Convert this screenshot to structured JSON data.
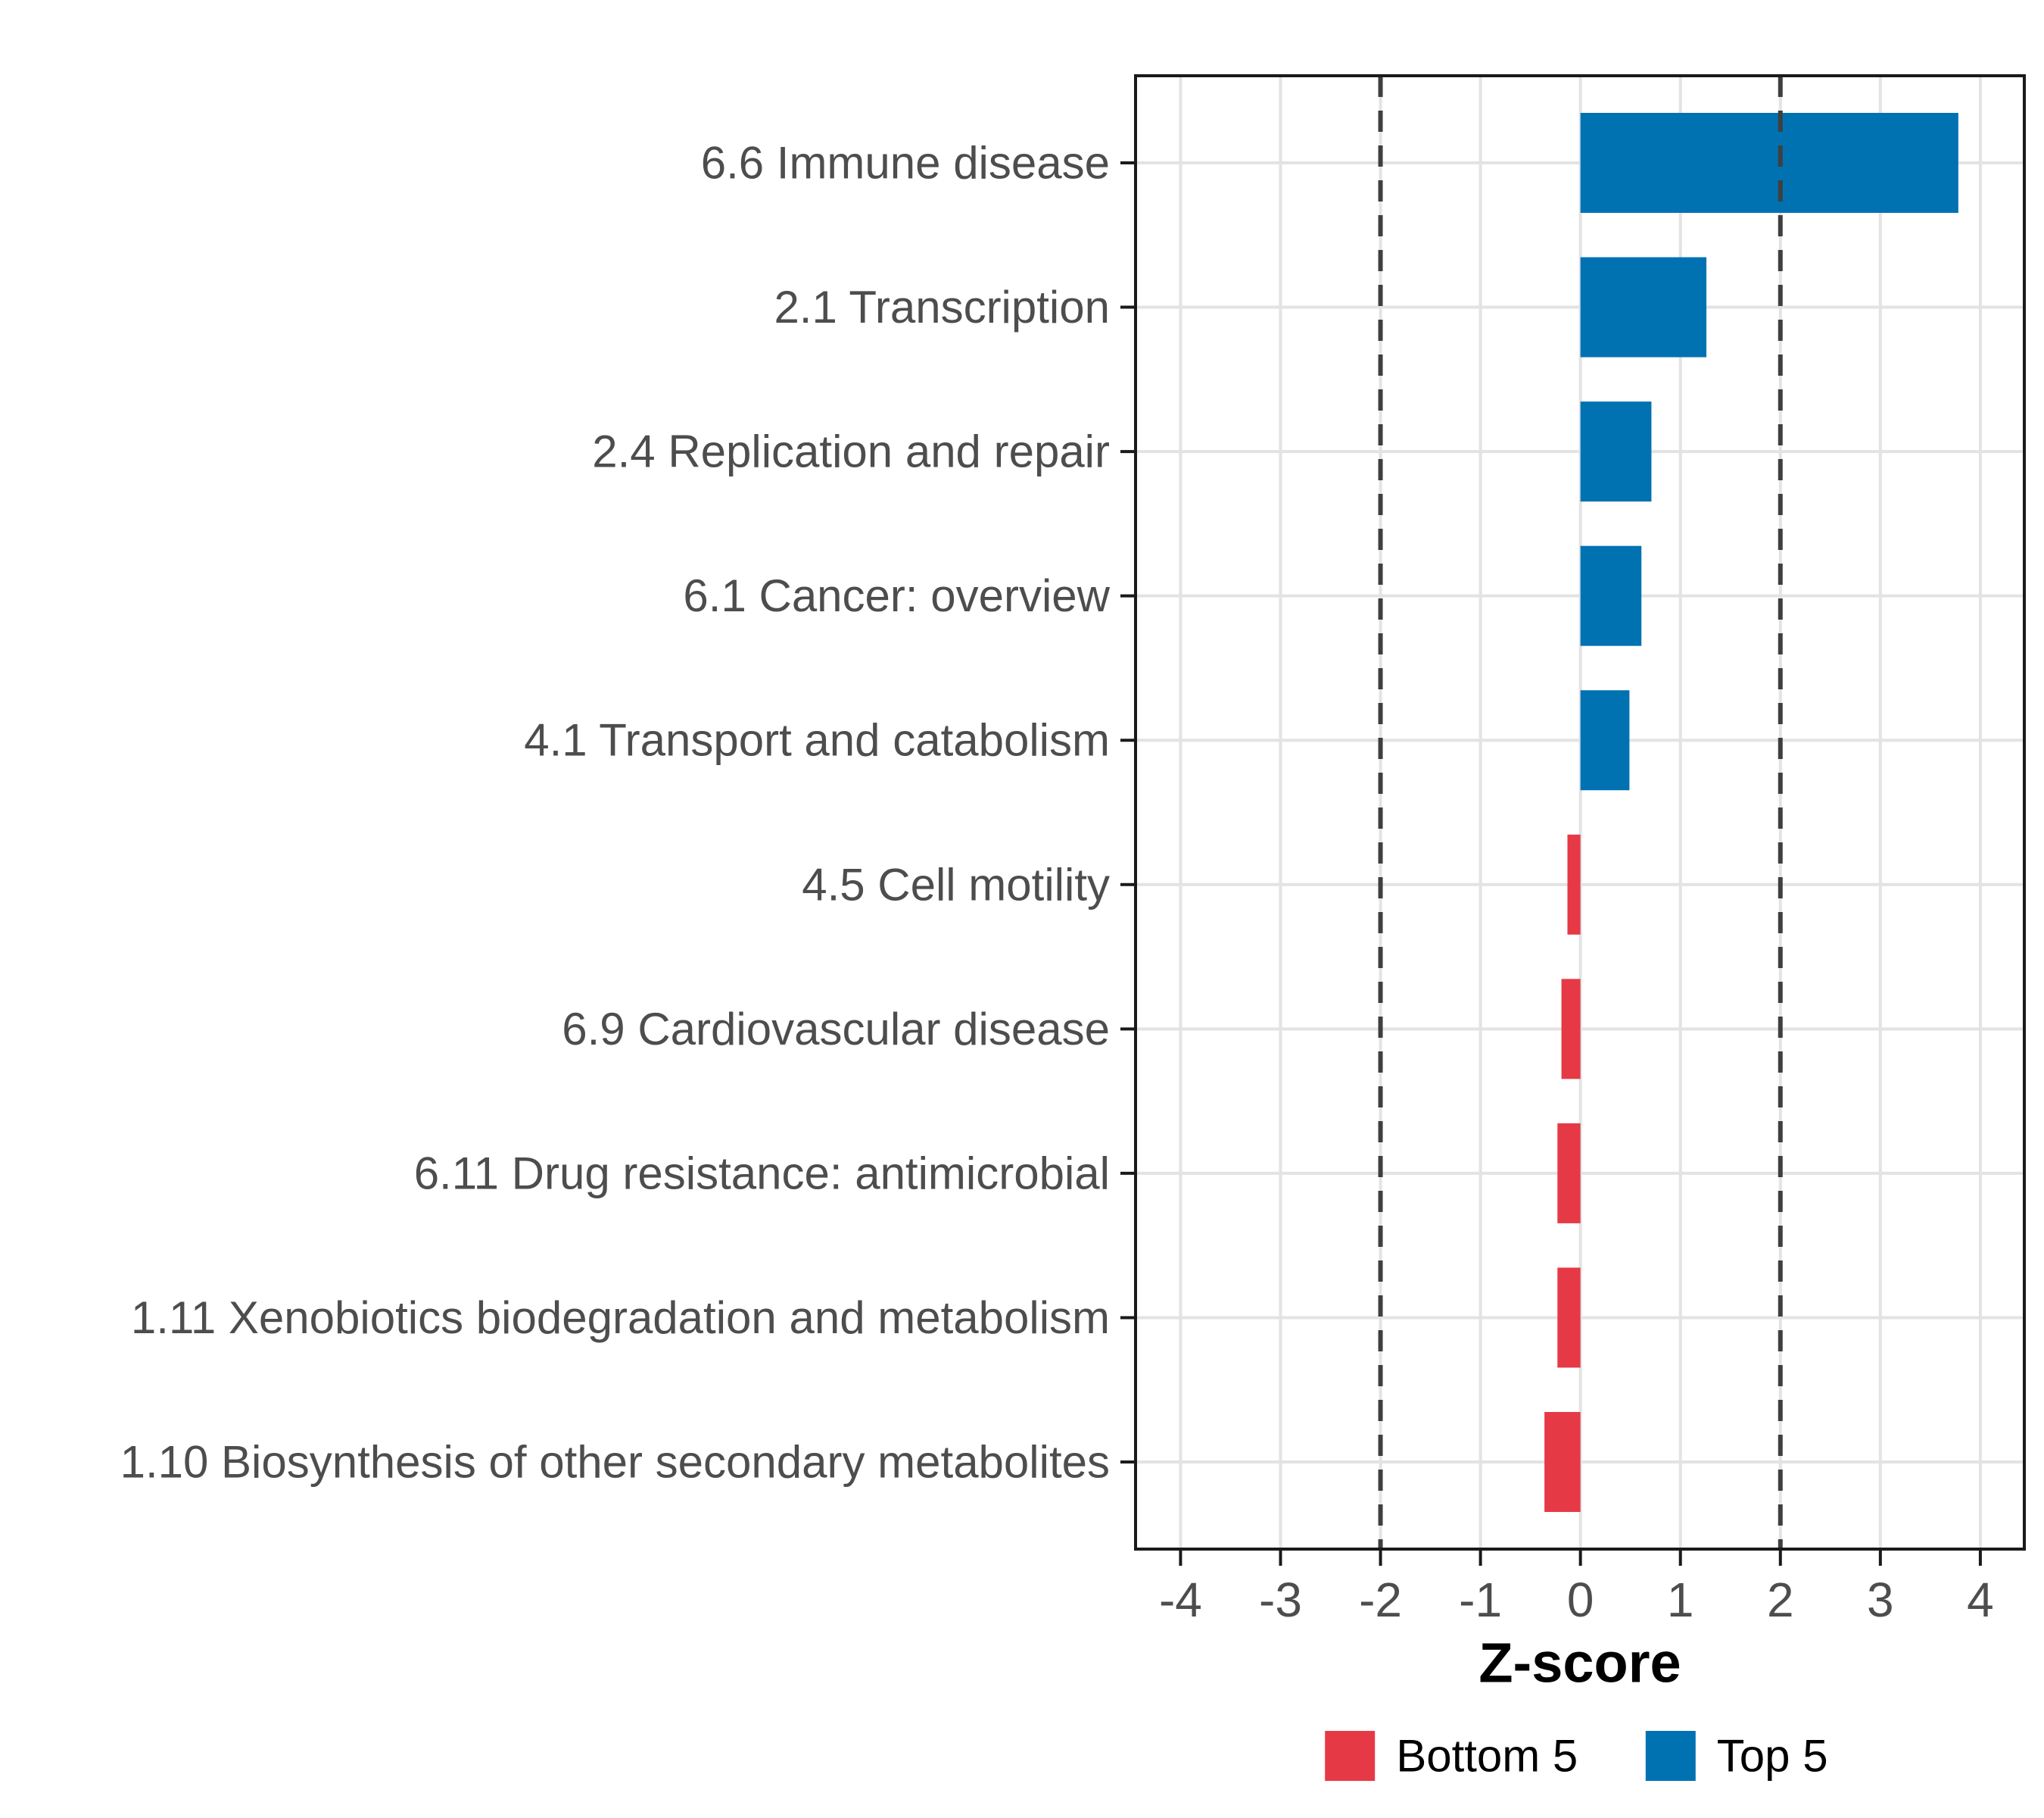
{
  "chart_data": {
    "type": "bar",
    "orientation": "horizontal",
    "xlabel": "Z-score",
    "xlim": [
      -4.45,
      4.44
    ],
    "xticks": [
      "-4",
      "-3",
      "-2",
      "-1",
      "0",
      "1",
      "2",
      "3",
      "4"
    ],
    "xtick_values": [
      -4,
      -3,
      -2,
      -1,
      0,
      1,
      2,
      3,
      4
    ],
    "dashed_reference_lines": [
      -2,
      2
    ],
    "grid": "major vertical at integers, horizontal at category centers",
    "legend_position": "bottom center",
    "bars": [
      {
        "label": "6.6 Immune disease",
        "value": 3.78,
        "group": "Top 5"
      },
      {
        "label": "2.1 Transcription",
        "value": 1.26,
        "group": "Top 5"
      },
      {
        "label": "2.4 Replication and repair",
        "value": 0.71,
        "group": "Top 5"
      },
      {
        "label": "6.1 Cancer: overview",
        "value": 0.61,
        "group": "Top 5"
      },
      {
        "label": "4.1 Transport and catabolism",
        "value": 0.49,
        "group": "Top 5"
      },
      {
        "label": "4.5 Cell motility",
        "value": -0.13,
        "group": "Bottom 5"
      },
      {
        "label": "6.9 Cardiovascular disease",
        "value": -0.19,
        "group": "Bottom 5"
      },
      {
        "label": "6.11 Drug resistance: antimicrobial",
        "value": -0.23,
        "group": "Bottom 5"
      },
      {
        "label": "1.11 Xenobiotics biodegradation and metabolism",
        "value": -0.23,
        "group": "Bottom 5"
      },
      {
        "label": "1.10 Biosynthesis of other secondary metabolites",
        "value": -0.36,
        "group": "Bottom 5"
      }
    ],
    "legend": [
      {
        "label": "Bottom 5",
        "color": "#E63946"
      },
      {
        "label": "Top 5",
        "color": "#0072B2"
      }
    ],
    "colors": {
      "top5": "#0072B2",
      "bottom5": "#E63946",
      "gridline": "#E3E3E3",
      "panel_border": "#1A1A1A",
      "dashed_line": "#3F3F3F",
      "axis_text": "#4D4D4D",
      "title_text": "#000000",
      "background": "#FFFFFF"
    }
  }
}
